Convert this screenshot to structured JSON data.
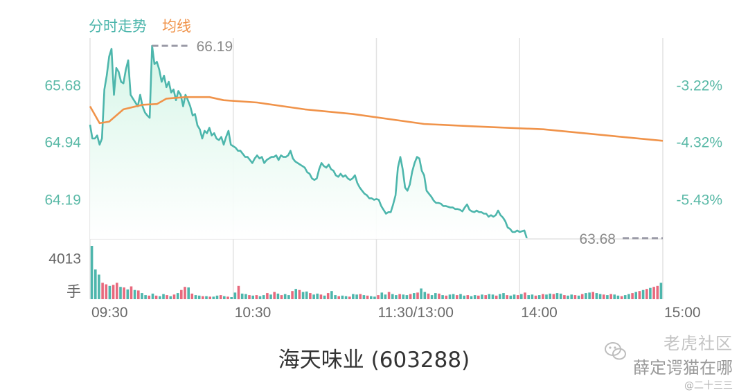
{
  "legend": {
    "price": "分时走势",
    "average": "均线"
  },
  "title": "海天味业 (603288)",
  "watermark": {
    "line1": "老虎社区",
    "line2": "薛定谔猫在哪",
    "line3": "@二十三三"
  },
  "colors": {
    "price_line": "#4db6ac",
    "average_line": "#f0934a",
    "up_volume": "#e8697d",
    "down_volume": "#4db6ac",
    "axis_text": "#5ab9a7",
    "grid": "#e2e2e2"
  },
  "chart_data": {
    "type": "line",
    "x_tick_labels": [
      "09:30",
      "10:30",
      "11:30/13:00",
      "14:00",
      "15:00"
    ],
    "y_tick_labels_left": [
      "65.68",
      "64.94",
      "64.19"
    ],
    "y_tick_labels_right": [
      "-3.22%",
      "-4.32%",
      "-5.43%"
    ],
    "y_ticks": [
      65.68,
      64.94,
      64.19
    ],
    "ylim": [
      63.67,
      66.29
    ],
    "max_annotation": {
      "label": "66.19",
      "value": 66.19,
      "minute": 26
    },
    "min_annotation": {
      "label": "63.68",
      "value": 63.68,
      "minute": 240
    },
    "volume_tick_label": "4013",
    "volume_unit": "手",
    "volume_tick_value": 4013,
    "volume_max": 5200,
    "total_minutes": 240,
    "price_points": [
      [
        0,
        65.16
      ],
      [
        1,
        64.98
      ],
      [
        2,
        64.98
      ],
      [
        3,
        65.02
      ],
      [
        4,
        64.9
      ],
      [
        5,
        64.98
      ],
      [
        6,
        65.62
      ],
      [
        7,
        65.8
      ],
      [
        8,
        66.05
      ],
      [
        9,
        66.15
      ],
      [
        10,
        65.55
      ],
      [
        11,
        65.9
      ],
      [
        12,
        65.85
      ],
      [
        13,
        65.72
      ],
      [
        14,
        65.7
      ],
      [
        15,
        65.88
      ],
      [
        16,
        66.0
      ],
      [
        17,
        65.55
      ],
      [
        18,
        65.5
      ],
      [
        19,
        65.45
      ],
      [
        20,
        65.4
      ],
      [
        21,
        65.55
      ],
      [
        22,
        65.4
      ],
      [
        23,
        65.32
      ],
      [
        24,
        65.28
      ],
      [
        25,
        65.25
      ],
      [
        26,
        66.19
      ],
      [
        27,
        65.95
      ],
      [
        28,
        65.98
      ],
      [
        29,
        65.88
      ],
      [
        30,
        65.72
      ],
      [
        31,
        65.8
      ],
      [
        32,
        65.65
      ],
      [
        33,
        65.72
      ],
      [
        34,
        65.58
      ],
      [
        35,
        65.62
      ],
      [
        36,
        65.48
      ],
      [
        37,
        65.6
      ],
      [
        38,
        65.55
      ],
      [
        39,
        65.4
      ],
      [
        40,
        65.55
      ],
      [
        41,
        65.48
      ],
      [
        42,
        65.4
      ],
      [
        43,
        65.28
      ],
      [
        44,
        65.3
      ],
      [
        45,
        65.15
      ],
      [
        46,
        65.1
      ],
      [
        47,
        64.98
      ],
      [
        48,
        65.08
      ],
      [
        49,
        65.05
      ],
      [
        50,
        65.12
      ],
      [
        51,
        65.02
      ],
      [
        52,
        65.05
      ],
      [
        53,
        64.98
      ],
      [
        54,
        64.96
      ],
      [
        55,
        65.0
      ],
      [
        56,
        64.9
      ],
      [
        57,
        65.0
      ],
      [
        58,
        65.08
      ],
      [
        59,
        64.9
      ],
      [
        60,
        64.88
      ],
      [
        61,
        64.86
      ],
      [
        62,
        64.82
      ],
      [
        63,
        64.82
      ],
      [
        64,
        64.78
      ],
      [
        65,
        64.74
      ],
      [
        66,
        64.74
      ],
      [
        67,
        64.7
      ],
      [
        68,
        64.66
      ],
      [
        69,
        64.72
      ],
      [
        70,
        64.76
      ],
      [
        71,
        64.72
      ],
      [
        72,
        64.74
      ],
      [
        73,
        64.66
      ],
      [
        74,
        64.7
      ],
      [
        75,
        64.72
      ],
      [
        76,
        64.74
      ],
      [
        77,
        64.74
      ],
      [
        78,
        64.76
      ],
      [
        79,
        64.7
      ],
      [
        80,
        64.76
      ],
      [
        81,
        64.74
      ],
      [
        82,
        64.74
      ],
      [
        83,
        64.76
      ],
      [
        84,
        64.82
      ],
      [
        85,
        64.72
      ],
      [
        86,
        64.68
      ],
      [
        87,
        64.66
      ],
      [
        88,
        64.64
      ],
      [
        89,
        64.62
      ],
      [
        90,
        64.6
      ],
      [
        91,
        64.54
      ],
      [
        92,
        64.52
      ],
      [
        93,
        64.46
      ],
      [
        94,
        64.44
      ],
      [
        95,
        64.46
      ],
      [
        96,
        64.58
      ],
      [
        97,
        64.66
      ],
      [
        98,
        64.62
      ],
      [
        99,
        64.6
      ],
      [
        100,
        64.64
      ],
      [
        101,
        64.58
      ],
      [
        102,
        64.56
      ],
      [
        103,
        64.5
      ],
      [
        104,
        64.48
      ],
      [
        105,
        64.52
      ],
      [
        106,
        64.48
      ],
      [
        107,
        64.5
      ],
      [
        108,
        64.46
      ],
      [
        109,
        64.44
      ],
      [
        110,
        64.46
      ],
      [
        111,
        64.5
      ],
      [
        112,
        64.4
      ],
      [
        113,
        64.34
      ],
      [
        114,
        64.3
      ],
      [
        115,
        64.26
      ],
      [
        116,
        64.24
      ],
      [
        117,
        64.2
      ],
      [
        118,
        64.2
      ],
      [
        119,
        64.18
      ],
      [
        120,
        64.19
      ],
      [
        121,
        64.18
      ],
      [
        122,
        64.1
      ],
      [
        123,
        64.05
      ],
      [
        124,
        64.0
      ],
      [
        125,
        64.02
      ],
      [
        126,
        64.02
      ],
      [
        127,
        64.12
      ],
      [
        128,
        64.24
      ],
      [
        129,
        64.6
      ],
      [
        130,
        64.74
      ],
      [
        131,
        64.58
      ],
      [
        132,
        64.34
      ],
      [
        133,
        64.3
      ],
      [
        134,
        64.38
      ],
      [
        135,
        64.55
      ],
      [
        136,
        64.66
      ],
      [
        137,
        64.74
      ],
      [
        138,
        64.72
      ],
      [
        139,
        64.56
      ],
      [
        140,
        64.5
      ],
      [
        141,
        64.3
      ],
      [
        142,
        64.26
      ],
      [
        143,
        64.22
      ],
      [
        144,
        64.17
      ],
      [
        145,
        64.14
      ],
      [
        146,
        64.14
      ],
      [
        147,
        64.13
      ],
      [
        148,
        64.1
      ],
      [
        149,
        64.1
      ],
      [
        150,
        64.09
      ],
      [
        151,
        64.08
      ],
      [
        152,
        64.08
      ],
      [
        153,
        64.06
      ],
      [
        154,
        64.06
      ],
      [
        155,
        64.05
      ],
      [
        156,
        64.03
      ],
      [
        157,
        64.08
      ],
      [
        158,
        64.12
      ],
      [
        159,
        64.05
      ],
      [
        160,
        64.03
      ],
      [
        161,
        64.02
      ],
      [
        162,
        64.04
      ],
      [
        163,
        64.02
      ],
      [
        164,
        64.02
      ],
      [
        165,
        64.0
      ],
      [
        166,
        64.0
      ],
      [
        167,
        63.96
      ],
      [
        168,
        63.98
      ],
      [
        169,
        63.96
      ],
      [
        170,
        63.98
      ],
      [
        171,
        64.04
      ],
      [
        172,
        63.98
      ],
      [
        173,
        63.95
      ],
      [
        174,
        63.9
      ],
      [
        175,
        63.82
      ],
      [
        176,
        63.8
      ],
      [
        177,
        63.76
      ],
      [
        178,
        63.76
      ],
      [
        179,
        63.78
      ],
      [
        180,
        63.76
      ],
      [
        181,
        63.77
      ],
      [
        182,
        63.78
      ],
      [
        183,
        63.68
      ]
    ],
    "average_points": [
      [
        0,
        65.4
      ],
      [
        4,
        65.18
      ],
      [
        8,
        65.2
      ],
      [
        14,
        65.36
      ],
      [
        22,
        65.42
      ],
      [
        28,
        65.43
      ],
      [
        32,
        65.5
      ],
      [
        40,
        65.52
      ],
      [
        50,
        65.52
      ],
      [
        56,
        65.48
      ],
      [
        70,
        65.45
      ],
      [
        90,
        65.36
      ],
      [
        110,
        65.3
      ],
      [
        140,
        65.17
      ],
      [
        160,
        65.14
      ],
      [
        190,
        65.1
      ],
      [
        220,
        65.01
      ],
      [
        240,
        64.95
      ]
    ],
    "volumes": [
      5200,
      2900,
      2400,
      1600,
      1450,
      1300,
      1400,
      1600,
      1200,
      1150,
      950,
      1250,
      900,
      850,
      600,
      400,
      350,
      550,
      350,
      300,
      500,
      400,
      300,
      450,
      600,
      900,
      1200,
      1150,
      550,
      400,
      350,
      300,
      300,
      250,
      250,
      350,
      400,
      300,
      250,
      200,
      650,
      1300,
      550,
      500,
      400,
      350,
      400,
      300,
      400,
      600,
      450,
      700,
      550,
      400,
      500,
      400,
      800,
      1000,
      900,
      700,
      750,
      600,
      450,
      550,
      450,
      350,
      600,
      800,
      400,
      300,
      350,
      300,
      250,
      500,
      450,
      500,
      400,
      350,
      300,
      250,
      400,
      650,
      450,
      700,
      500,
      400,
      500,
      450,
      400,
      500,
      600,
      650,
      1050,
      700,
      550,
      400,
      600,
      550,
      400,
      350,
      450,
      500,
      400,
      500,
      350,
      400,
      300,
      400,
      350,
      450,
      400,
      500,
      450,
      350,
      500,
      600,
      400,
      350,
      450,
      400,
      500,
      650,
      400,
      450,
      350,
      400,
      500,
      450,
      550,
      500,
      600,
      550,
      400,
      350,
      450,
      400,
      350,
      500,
      600,
      650,
      700,
      600,
      500,
      450,
      400,
      500,
      450,
      350,
      300,
      400,
      500,
      600,
      700,
      800,
      900,
      1000,
      1100,
      1200,
      1300,
      1600
    ],
    "volume_up": [
      false,
      false,
      false,
      true,
      true,
      false,
      true,
      true,
      false,
      true,
      false,
      true,
      false,
      true,
      false,
      false,
      true,
      false,
      true,
      false,
      false,
      true,
      false,
      true,
      false,
      true,
      true,
      false,
      true,
      false,
      false,
      true,
      false,
      true,
      false,
      false,
      true,
      false,
      true,
      false,
      false,
      true,
      false,
      false,
      true,
      false,
      true,
      false,
      false,
      true,
      false,
      true,
      false,
      true,
      false,
      false,
      true,
      false,
      true,
      false,
      false,
      true,
      false,
      false,
      true,
      false,
      true,
      false,
      false,
      true,
      false,
      false,
      true,
      false,
      false,
      true,
      false,
      true,
      false,
      false,
      true,
      false,
      false,
      true,
      false,
      false,
      true,
      false,
      false,
      true,
      false,
      true,
      false,
      false,
      true,
      false,
      false,
      true,
      false,
      true,
      false,
      false,
      true,
      false,
      false,
      true,
      false,
      false,
      true,
      false,
      true,
      false,
      false,
      true,
      false,
      false,
      true,
      false,
      false,
      true,
      false,
      true,
      false,
      false,
      true,
      false,
      true,
      false,
      false,
      true,
      false,
      false,
      true,
      false,
      false,
      true,
      false,
      true,
      false,
      false,
      true,
      false,
      false,
      true,
      false,
      true,
      false,
      false,
      true,
      false,
      false,
      true,
      false,
      true,
      false,
      true,
      false,
      true,
      true,
      false
    ]
  }
}
